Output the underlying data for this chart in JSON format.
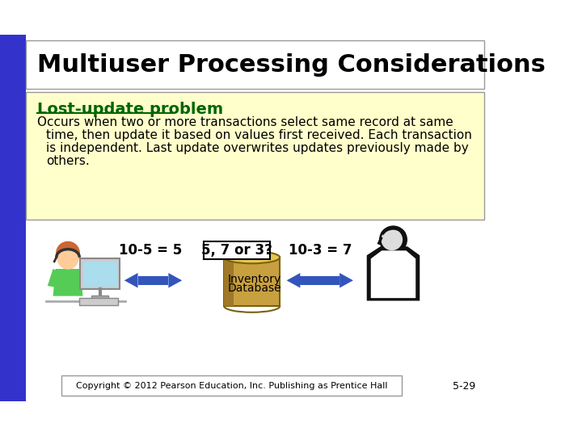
{
  "title": "Multiuser Processing Considerations",
  "subtitle_label": "Lost-update problem",
  "body_text": "Occurs when two or more transactions select same record at same\ntime, then update it based on values first received. Each transaction\nis independent. Last update overwrites updates previously made by\nothers.",
  "label_left": "10-5 = 5",
  "label_center": "5, 7 or 3?",
  "label_right": "10-3 = 7",
  "db_label1": "Inventory",
  "db_label2": "Database",
  "copyright": "Copyright © 2012 Pearson Education, Inc. Publishing as Prentice Hall",
  "page_num": "5-29",
  "bg_color": "#FFFFFF",
  "title_bg": "#FFFFFF",
  "body_bg": "#FFFFCC",
  "sidebar_color": "#3333CC",
  "title_color": "#000000",
  "subtitle_color": "#006600",
  "body_color": "#000000",
  "arrow_color": "#3355BB",
  "eq_box_color": "#FFFFFF",
  "eq_box_edge": "#000000"
}
